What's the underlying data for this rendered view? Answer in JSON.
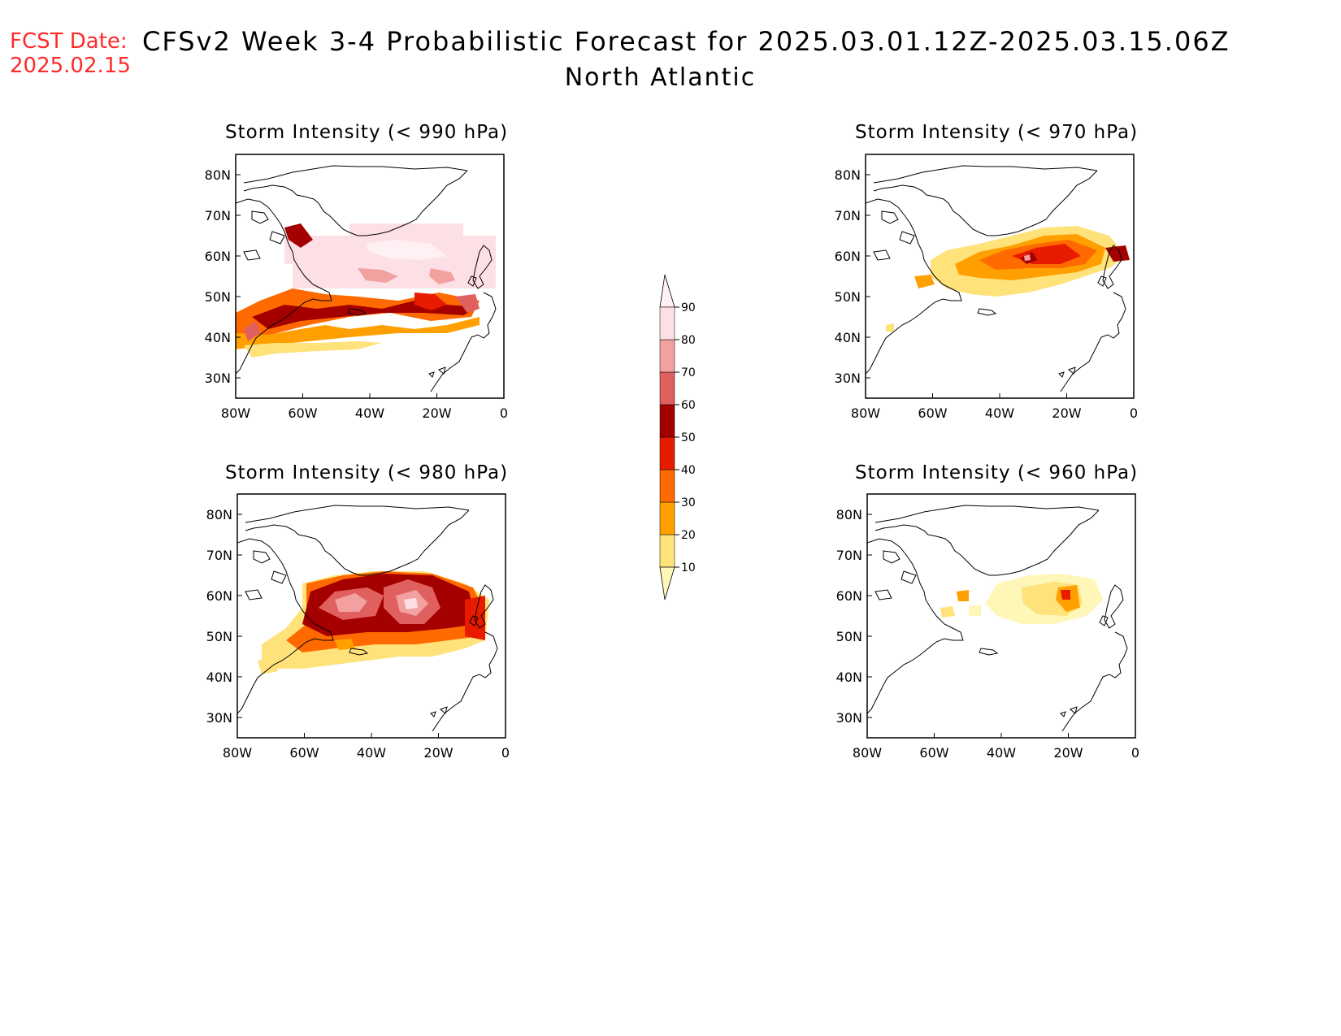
{
  "header": {
    "fcst_label": "FCST Date:",
    "fcst_date": "2025.02.15",
    "title": "CFSv2 Week 3-4 Probabilistic Forecast for 2025.03.01.12Z-2025.03.15.06Z",
    "region": "North Atlantic"
  },
  "panels": [
    {
      "title": "Storm Intensity (< 990 hPa)"
    },
    {
      "title": "Storm Intensity (< 970 hPa)"
    },
    {
      "title": "Storm Intensity (< 980 hPa)"
    },
    {
      "title": "Storm Intensity (< 960 hPa)"
    }
  ],
  "axes": {
    "lon_ticks": [
      "80W",
      "60W",
      "40W",
      "20W",
      "0"
    ],
    "lat_ticks": [
      "80N",
      "70N",
      "60N",
      "50N",
      "40N",
      "30N"
    ],
    "lon_range": [
      -80,
      0
    ],
    "lat_range": [
      25,
      85
    ]
  },
  "colorbar": {
    "levels": [
      "10",
      "20",
      "30",
      "40",
      "50",
      "60",
      "70",
      "80",
      "90"
    ],
    "colors": [
      "#fff7b8",
      "#ffe27a",
      "#ffa000",
      "#ff6a00",
      "#e81a00",
      "#a50000",
      "#e06060",
      "#f2a0a0",
      "#fde0e6",
      "#fff0f3"
    ]
  }
}
